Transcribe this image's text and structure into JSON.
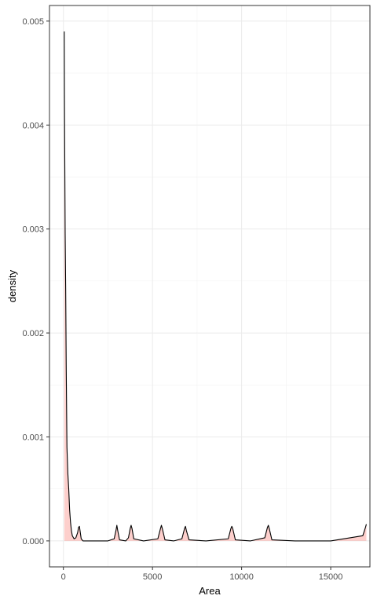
{
  "chart_data": {
    "type": "area",
    "title": "",
    "xlabel": "Area",
    "ylabel": "density",
    "xlim": [
      -780,
      17200
    ],
    "ylim": [
      -0.00025,
      0.00515
    ],
    "x_ticks": [
      0,
      5000,
      10000,
      15000
    ],
    "x_tick_labels": [
      "0",
      "5000",
      "10000",
      "15000"
    ],
    "y_ticks": [
      0.0,
      0.001,
      0.002,
      0.003,
      0.004,
      0.005
    ],
    "y_tick_labels": [
      "0.000",
      "0.001",
      "0.002",
      "0.003",
      "0.004",
      "0.005"
    ],
    "grid": true,
    "legend": "none",
    "fill_color": "#f8766d",
    "line_color": "#000000",
    "series": [
      {
        "x": [
          50,
          60,
          80,
          100,
          130,
          160,
          200,
          250,
          300,
          350,
          400,
          450,
          500,
          600,
          700,
          800,
          850,
          900,
          950,
          1000,
          1100,
          1500,
          2000,
          2500,
          2850,
          2950,
          3000,
          3050,
          3150,
          3500,
          3650,
          3750,
          3800,
          3850,
          3950,
          4500,
          5300,
          5450,
          5500,
          5550,
          5700,
          6200,
          6650,
          6800,
          6850,
          6900,
          7050,
          8000,
          9250,
          9400,
          9450,
          9500,
          9650,
          10500,
          11300,
          11450,
          11500,
          11550,
          11700,
          13000,
          15000,
          16800,
          16950,
          17000
        ],
        "y": [
          0.0049,
          0.0043,
          0.0036,
          0.00295,
          0.0024,
          0.00165,
          0.0009,
          0.00065,
          0.0005,
          0.0003,
          0.00018,
          0.0001,
          5e-05,
          2e-05,
          3e-05,
          8e-05,
          0.00013,
          0.00014,
          8e-05,
          2e-05,
          0.0,
          0.0,
          0.0,
          0.0,
          2e-05,
          0.0001,
          0.00015,
          0.0001,
          1e-05,
          0.0,
          3e-05,
          0.00012,
          0.00015,
          0.00012,
          2e-05,
          0.0,
          2e-05,
          0.00012,
          0.00015,
          0.00012,
          1e-05,
          0.0,
          2e-05,
          0.00012,
          0.00014,
          0.0001,
          1e-05,
          0.0,
          2e-05,
          0.00012,
          0.00014,
          0.00012,
          1e-05,
          0.0,
          3e-05,
          0.00013,
          0.00015,
          0.00012,
          1e-05,
          0.0,
          0.0,
          5e-05,
          0.00013,
          0.00016
        ]
      }
    ]
  }
}
